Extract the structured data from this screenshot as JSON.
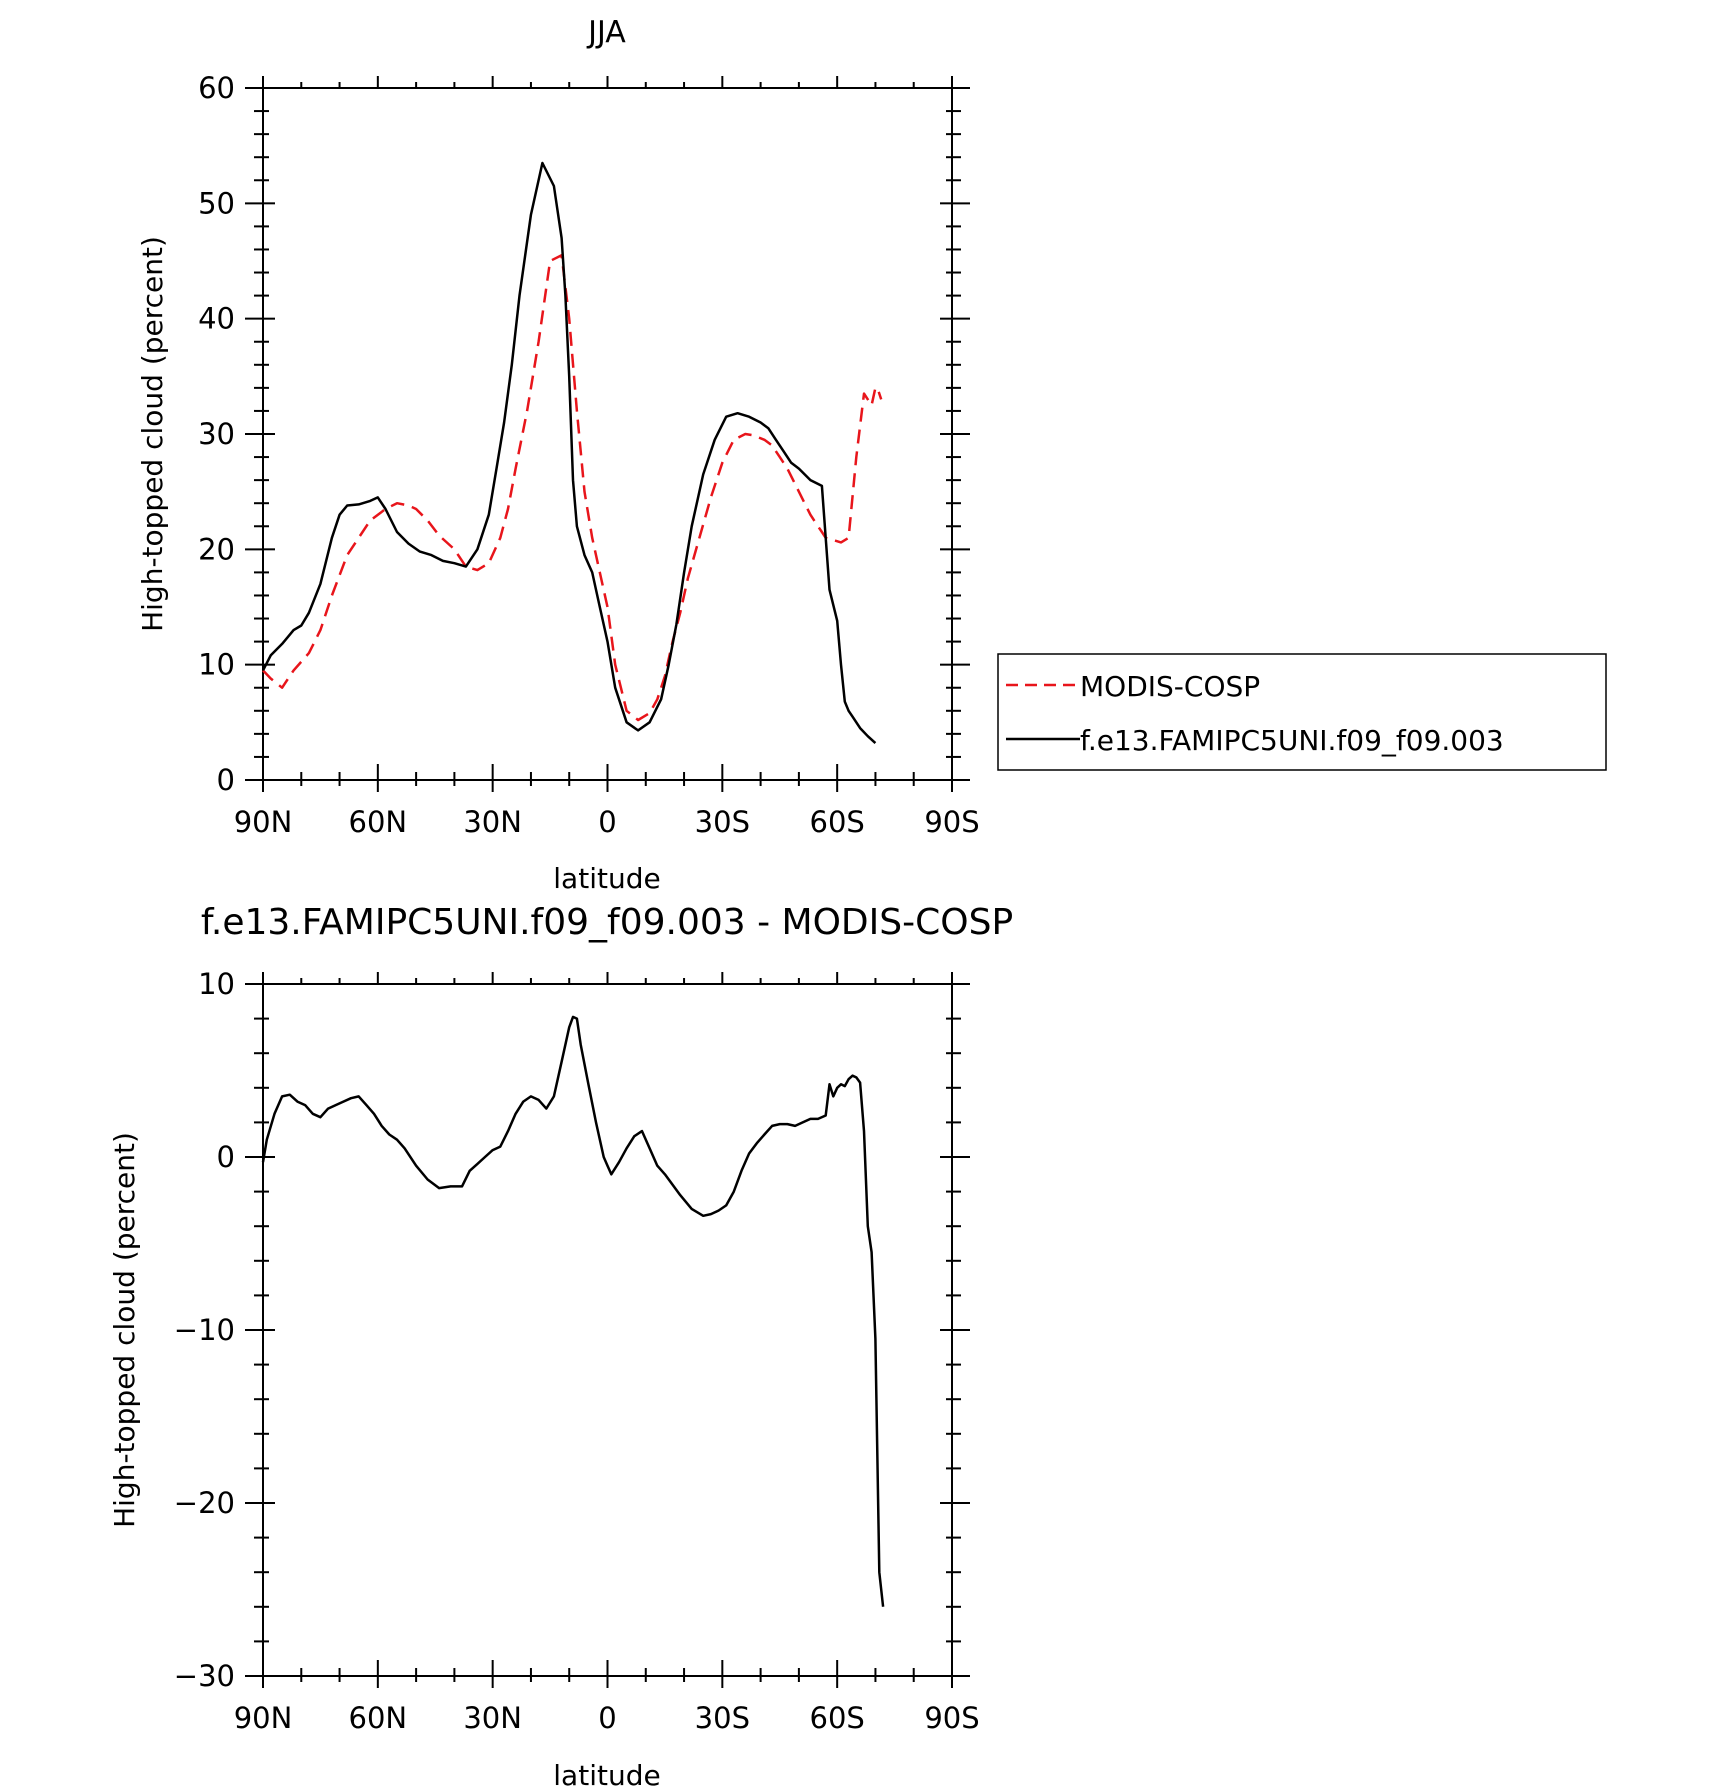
{
  "chart_data": [
    {
      "type": "line",
      "title": "JJA",
      "xlabel": "latitude",
      "ylabel": "High-topped cloud (percent)",
      "xlim": [
        90,
        -90
      ],
      "ylim": [
        0,
        60
      ],
      "x_ticks": [
        90,
        60,
        30,
        0,
        -30,
        -60,
        -90
      ],
      "x_tick_labels": [
        "90N",
        "60N",
        "30N",
        "0",
        "30S",
        "60S",
        "90S"
      ],
      "y_ticks": [
        0,
        10,
        20,
        30,
        40,
        50,
        60
      ],
      "y_tick_labels": [
        "0",
        "10",
        "20",
        "30",
        "40",
        "50",
        "60"
      ],
      "legend_placement": "right",
      "series": [
        {
          "name": "MODIS-COSP",
          "color": "#e8151b",
          "dash": "dashed",
          "x": [
            90,
            88,
            85,
            82,
            78,
            75,
            72,
            68,
            65,
            62,
            58,
            55,
            52,
            50,
            47,
            44,
            40,
            37,
            34,
            31,
            28,
            26,
            24,
            21,
            18,
            15,
            12,
            10,
            8,
            6,
            4,
            2,
            0,
            -2,
            -5,
            -8,
            -11,
            -13,
            -15,
            -16,
            -17,
            -19,
            -21,
            -24,
            -27,
            -30,
            -33,
            -36,
            -38,
            -41,
            -43,
            -45,
            -47,
            -50,
            -53,
            -55,
            -56,
            -57,
            -59,
            -61,
            -63,
            -65,
            -67,
            -68,
            -69,
            -70,
            -70.5,
            -71.5
          ],
          "y": [
            9.5,
            8.8,
            8,
            9.5,
            11,
            13,
            16,
            19.5,
            21,
            22.5,
            23.5,
            24,
            23.8,
            23.5,
            22.5,
            21.2,
            20,
            18.5,
            18.2,
            18.8,
            21,
            23.5,
            27,
            32,
            38,
            45,
            45.5,
            40,
            32,
            25,
            21,
            18,
            15,
            10,
            6,
            5.2,
            5.8,
            7,
            9,
            10.5,
            12,
            14.5,
            17.5,
            21,
            24.5,
            27.5,
            29.5,
            30,
            29.9,
            29.5,
            29,
            28,
            27,
            25,
            23,
            22,
            21.5,
            21,
            20.8,
            20.6,
            21,
            28,
            33.5,
            33,
            32.5,
            34,
            34,
            33
          ],
          "comment_removed": ""
        },
        {
          "name": "f.e13.FAMIPC5UNI.f09_f09.003",
          "color": "#000000",
          "dash": "solid",
          "x": [
            90,
            88,
            85,
            82,
            80,
            78,
            75,
            72,
            70,
            68,
            65,
            62,
            60,
            58,
            55,
            52,
            49,
            46,
            43,
            40,
            37,
            34,
            31,
            29,
            27,
            25,
            23,
            20,
            17,
            14,
            12,
            11,
            10,
            9,
            8,
            6,
            4,
            2,
            0,
            -2,
            -5,
            -8,
            -11,
            -14,
            -16,
            -18,
            -20,
            -22,
            -25,
            -28,
            -31,
            -34,
            -37,
            -40,
            -42,
            -44,
            -46,
            -48,
            -50,
            -53,
            -56,
            -58,
            -60,
            -61,
            -62,
            -63,
            -64,
            -66,
            -68,
            -70
          ],
          "y": [
            9.5,
            10.8,
            11.8,
            13,
            13.4,
            14.5,
            17,
            21,
            23,
            23.8,
            23.9,
            24.2,
            24.5,
            23.5,
            21.5,
            20.5,
            19.8,
            19.5,
            19,
            18.8,
            18.5,
            20,
            23,
            27,
            31,
            36,
            42,
            49,
            53.5,
            51.5,
            47,
            42,
            35,
            26,
            22,
            19.5,
            18,
            15,
            12,
            8,
            5,
            4.3,
            5,
            7,
            10,
            13.5,
            18,
            22,
            26.5,
            29.5,
            31.5,
            31.8,
            31.5,
            31,
            30.5,
            29.5,
            28.5,
            27.5,
            27,
            26,
            25.5,
            16.5,
            13.8,
            10,
            6.8,
            6,
            5.5,
            4.5,
            3.8,
            3.2
          ]
        }
      ]
    },
    {
      "type": "line",
      "title": "f.e13.FAMIPC5UNI.f09_f09.003 - MODIS-COSP",
      "xlabel": "latitude",
      "ylabel": "High-topped cloud (percent)",
      "xlim": [
        90,
        -90
      ],
      "ylim": [
        -30,
        10
      ],
      "x_ticks": [
        90,
        60,
        30,
        0,
        -30,
        -60,
        -90
      ],
      "x_tick_labels": [
        "90N",
        "60N",
        "30N",
        "0",
        "30S",
        "60S",
        "90S"
      ],
      "y_ticks": [
        -30,
        -20,
        -10,
        0,
        10
      ],
      "y_tick_labels": [
        "−30",
        "−20",
        "−10",
        "0",
        "10"
      ],
      "series": [
        {
          "color": "#000000",
          "dash": "solid",
          "x": [
            90,
            89,
            87,
            85,
            83,
            81,
            79,
            77,
            75,
            73,
            71,
            69,
            67,
            65,
            63,
            61,
            59,
            57,
            55,
            53,
            50,
            47,
            44,
            41,
            38,
            36,
            34,
            32,
            30,
            28,
            26,
            24,
            22,
            20,
            18,
            16,
            14,
            12,
            10,
            9,
            8,
            7,
            5,
            3,
            1,
            0,
            -1,
            -3,
            -5,
            -7,
            -9,
            -11,
            -13,
            -15,
            -17,
            -19,
            -22,
            -25,
            -27,
            -29,
            -31,
            -33,
            -35,
            -37,
            -39,
            -41,
            -43,
            -45,
            -47,
            -49,
            -51,
            -53,
            -55,
            -57,
            -58,
            -59,
            -60,
            -61,
            -62,
            -63,
            -64,
            -65,
            -66,
            -67,
            -68,
            -69,
            -70,
            -71,
            -72
          ],
          "y": [
            -0.3,
            1,
            2.5,
            3.5,
            3.6,
            3.2,
            3,
            2.5,
            2.3,
            2.8,
            3,
            3.2,
            3.4,
            3.5,
            3,
            2.5,
            1.8,
            1.3,
            1,
            0.5,
            -0.5,
            -1.3,
            -1.8,
            -1.7,
            -1.7,
            -0.8,
            -0.4,
            0,
            0.4,
            0.6,
            1.5,
            2.5,
            3.2,
            3.5,
            3.3,
            2.8,
            3.5,
            5.5,
            7.5,
            8.1,
            8,
            6.5,
            4.2,
            2,
            0,
            -0.5,
            -1,
            -0.3,
            0.5,
            1.2,
            1.5,
            0.5,
            -0.5,
            -1,
            -1.6,
            -2.2,
            -3,
            -3.4,
            -3.3,
            -3.1,
            -2.8,
            -2,
            -0.8,
            0.2,
            0.8,
            1.3,
            1.8,
            1.9,
            1.9,
            1.8,
            2,
            2.2,
            2.2,
            2.4,
            4.2,
            3.5,
            4,
            4.2,
            4.1,
            4.5,
            4.7,
            4.6,
            4.3,
            1.5,
            -4,
            -5.5,
            -10.5,
            -24,
            -26
          ]
        }
      ]
    }
  ]
}
